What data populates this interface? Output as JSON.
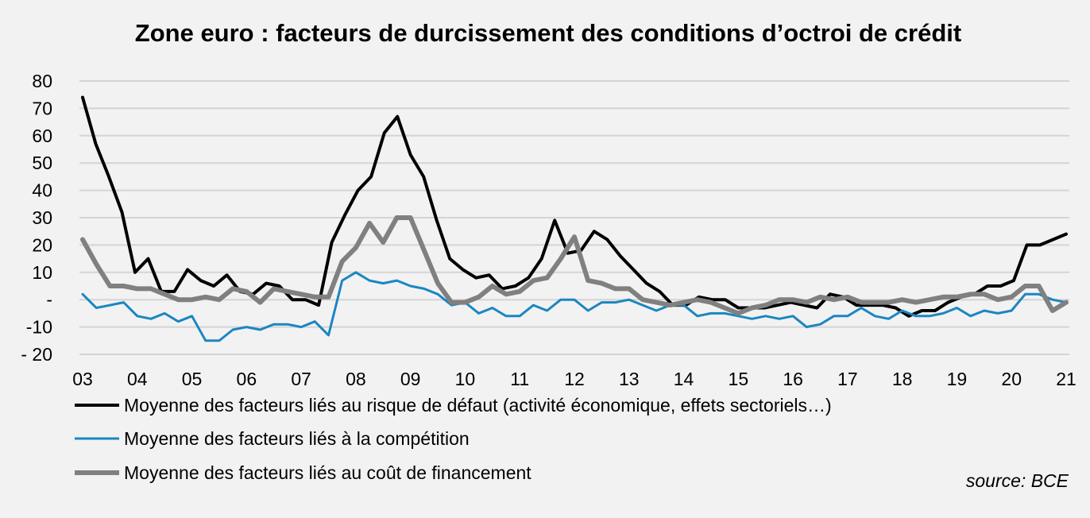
{
  "chart_data": {
    "type": "line",
    "title": "Zone euro : facteurs de durcissement des conditions d’octroi de crédit",
    "xlabel": "",
    "ylabel": "",
    "ylim": [
      -20,
      80
    ],
    "yticks": [
      80,
      70,
      60,
      50,
      40,
      30,
      20,
      10,
      0,
      -10,
      -20
    ],
    "ytick_labels": [
      "80",
      "70",
      "60",
      "50",
      "40",
      "30",
      "20",
      "10",
      "-",
      "-10",
      "- 20"
    ],
    "xlim": [
      2003.0,
      2021.0
    ],
    "xtick_labels": [
      "03",
      "04",
      "05",
      "06",
      "07",
      "08",
      "09",
      "10",
      "11",
      "12",
      "13",
      "14",
      "15",
      "16",
      "17",
      "18",
      "19",
      "20",
      "21"
    ],
    "grid": true,
    "legend_position": "bottom",
    "source": "source:  BCE",
    "series": [
      {
        "name": "Moyenne des facteurs liés au risque de défaut (activité économique, effets sectoriels…)",
        "color": "#000000",
        "values": [
          74,
          57,
          45,
          32,
          10,
          15,
          3,
          3,
          11,
          7,
          5,
          9,
          3,
          2,
          6,
          5,
          0,
          0,
          -2,
          21,
          31,
          40,
          45,
          61,
          67,
          53,
          45,
          29,
          15,
          11,
          8,
          9,
          4,
          5,
          8,
          15,
          29,
          17,
          18,
          25,
          22,
          16,
          11,
          6,
          3,
          -2,
          -2,
          1,
          0,
          0,
          -3,
          -3,
          -3,
          -2,
          -1,
          -2,
          -3,
          2,
          1,
          -2,
          -2,
          -2,
          -3,
          -6,
          -4,
          -4,
          -1,
          1,
          2,
          5,
          5,
          7,
          20,
          20,
          22,
          24
        ]
      },
      {
        "name": "Moyenne des facteurs liés à la compétition",
        "color": "#1b86c2",
        "values": [
          2,
          -3,
          -2,
          -1,
          -6,
          -7,
          -5,
          -8,
          -6,
          -15,
          -15,
          -11,
          -10,
          -11,
          -9,
          -9,
          -10,
          -8,
          -13,
          7,
          10,
          7,
          6,
          7,
          5,
          4,
          2,
          -2,
          -1,
          -5,
          -3,
          -6,
          -6,
          -2,
          -4,
          0,
          0,
          -4,
          -1,
          -1,
          0,
          -2,
          -4,
          -2,
          -2,
          -6,
          -5,
          -5,
          -6,
          -7,
          -6,
          -7,
          -6,
          -10,
          -9,
          -6,
          -6,
          -3,
          -6,
          -7,
          -4,
          -6,
          -6,
          -5,
          -3,
          -6,
          -4,
          -5,
          -4,
          2,
          2,
          0,
          -1
        ]
      },
      {
        "name": "Moyenne des facteurs liés au coût de financement",
        "color": "#808080",
        "values": [
          22,
          13,
          5,
          5,
          4,
          4,
          2,
          0,
          0,
          1,
          0,
          4,
          3,
          -1,
          4,
          3,
          2,
          1,
          1,
          14,
          19,
          28,
          21,
          30,
          30,
          18,
          6,
          -1,
          -1,
          1,
          5,
          2,
          3,
          7,
          8,
          15,
          23,
          7,
          6,
          4,
          4,
          0,
          -1,
          -2,
          -1,
          0,
          -1,
          -3,
          -5,
          -3,
          -2,
          0,
          0,
          -1,
          1,
          0,
          1,
          -1,
          -1,
          -1,
          0,
          -1,
          0,
          1,
          1,
          2,
          2,
          0,
          1,
          5,
          5,
          -4,
          -1
        ]
      }
    ]
  }
}
